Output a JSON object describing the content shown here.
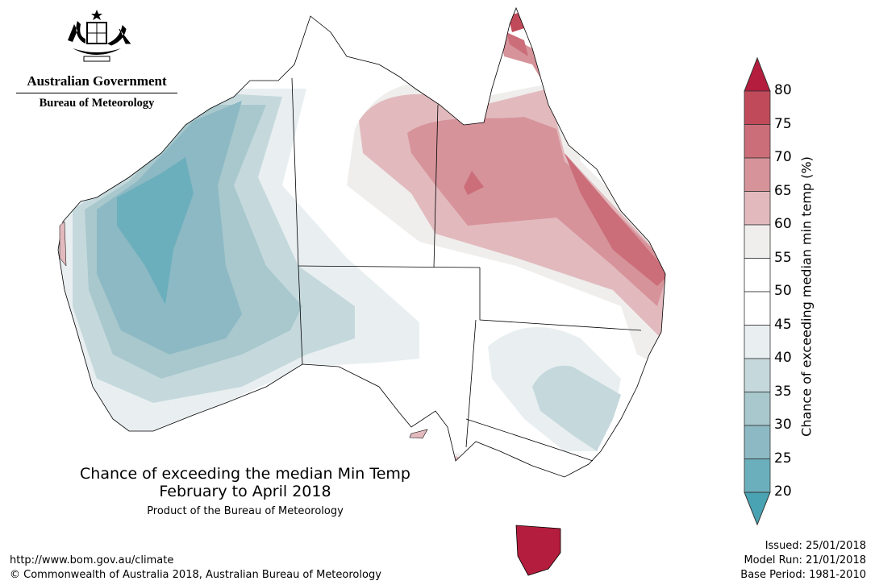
{
  "logo": {
    "government": "Australian Government",
    "bureau": "Bureau of Meteorology"
  },
  "title": {
    "line1": "Chance of exceeding the median Min Temp",
    "line2": "February to April 2018",
    "subtitle": "Product of the Bureau of Meteorology"
  },
  "footer": {
    "url": "http://www.bom.gov.au/climate",
    "copyright": "© Commonwealth of Australia 2018, Australian Bureau of Meteorology"
  },
  "meta": {
    "issued": "Issued: 25/01/2018",
    "model_run": "Model Run: 21/01/2018",
    "base_period": "Base Period: 1981-2010"
  },
  "legend": {
    "label": "Chance of exceeding median min temp (%)",
    "ticks": [
      "80",
      "75",
      "70",
      "65",
      "60",
      "55",
      "50",
      "45",
      "40",
      "35",
      "30",
      "25",
      "20"
    ],
    "colors": {
      "above80": "#b41d3d",
      "75_80": "#c04a5a",
      "70_75": "#cb6e79",
      "65_70": "#d6939a",
      "60_65": "#e2babe",
      "55_60": "#efeeec",
      "50_55": "#ffffff",
      "45_50": "#ffffff",
      "40_45": "#e9eff1",
      "35_40": "#c5d9dd",
      "30_35": "#a8c8cd",
      "25_30": "#8cb9c4",
      "20_25": "#6cafbc",
      "below20": "#4aa3b2"
    }
  }
}
